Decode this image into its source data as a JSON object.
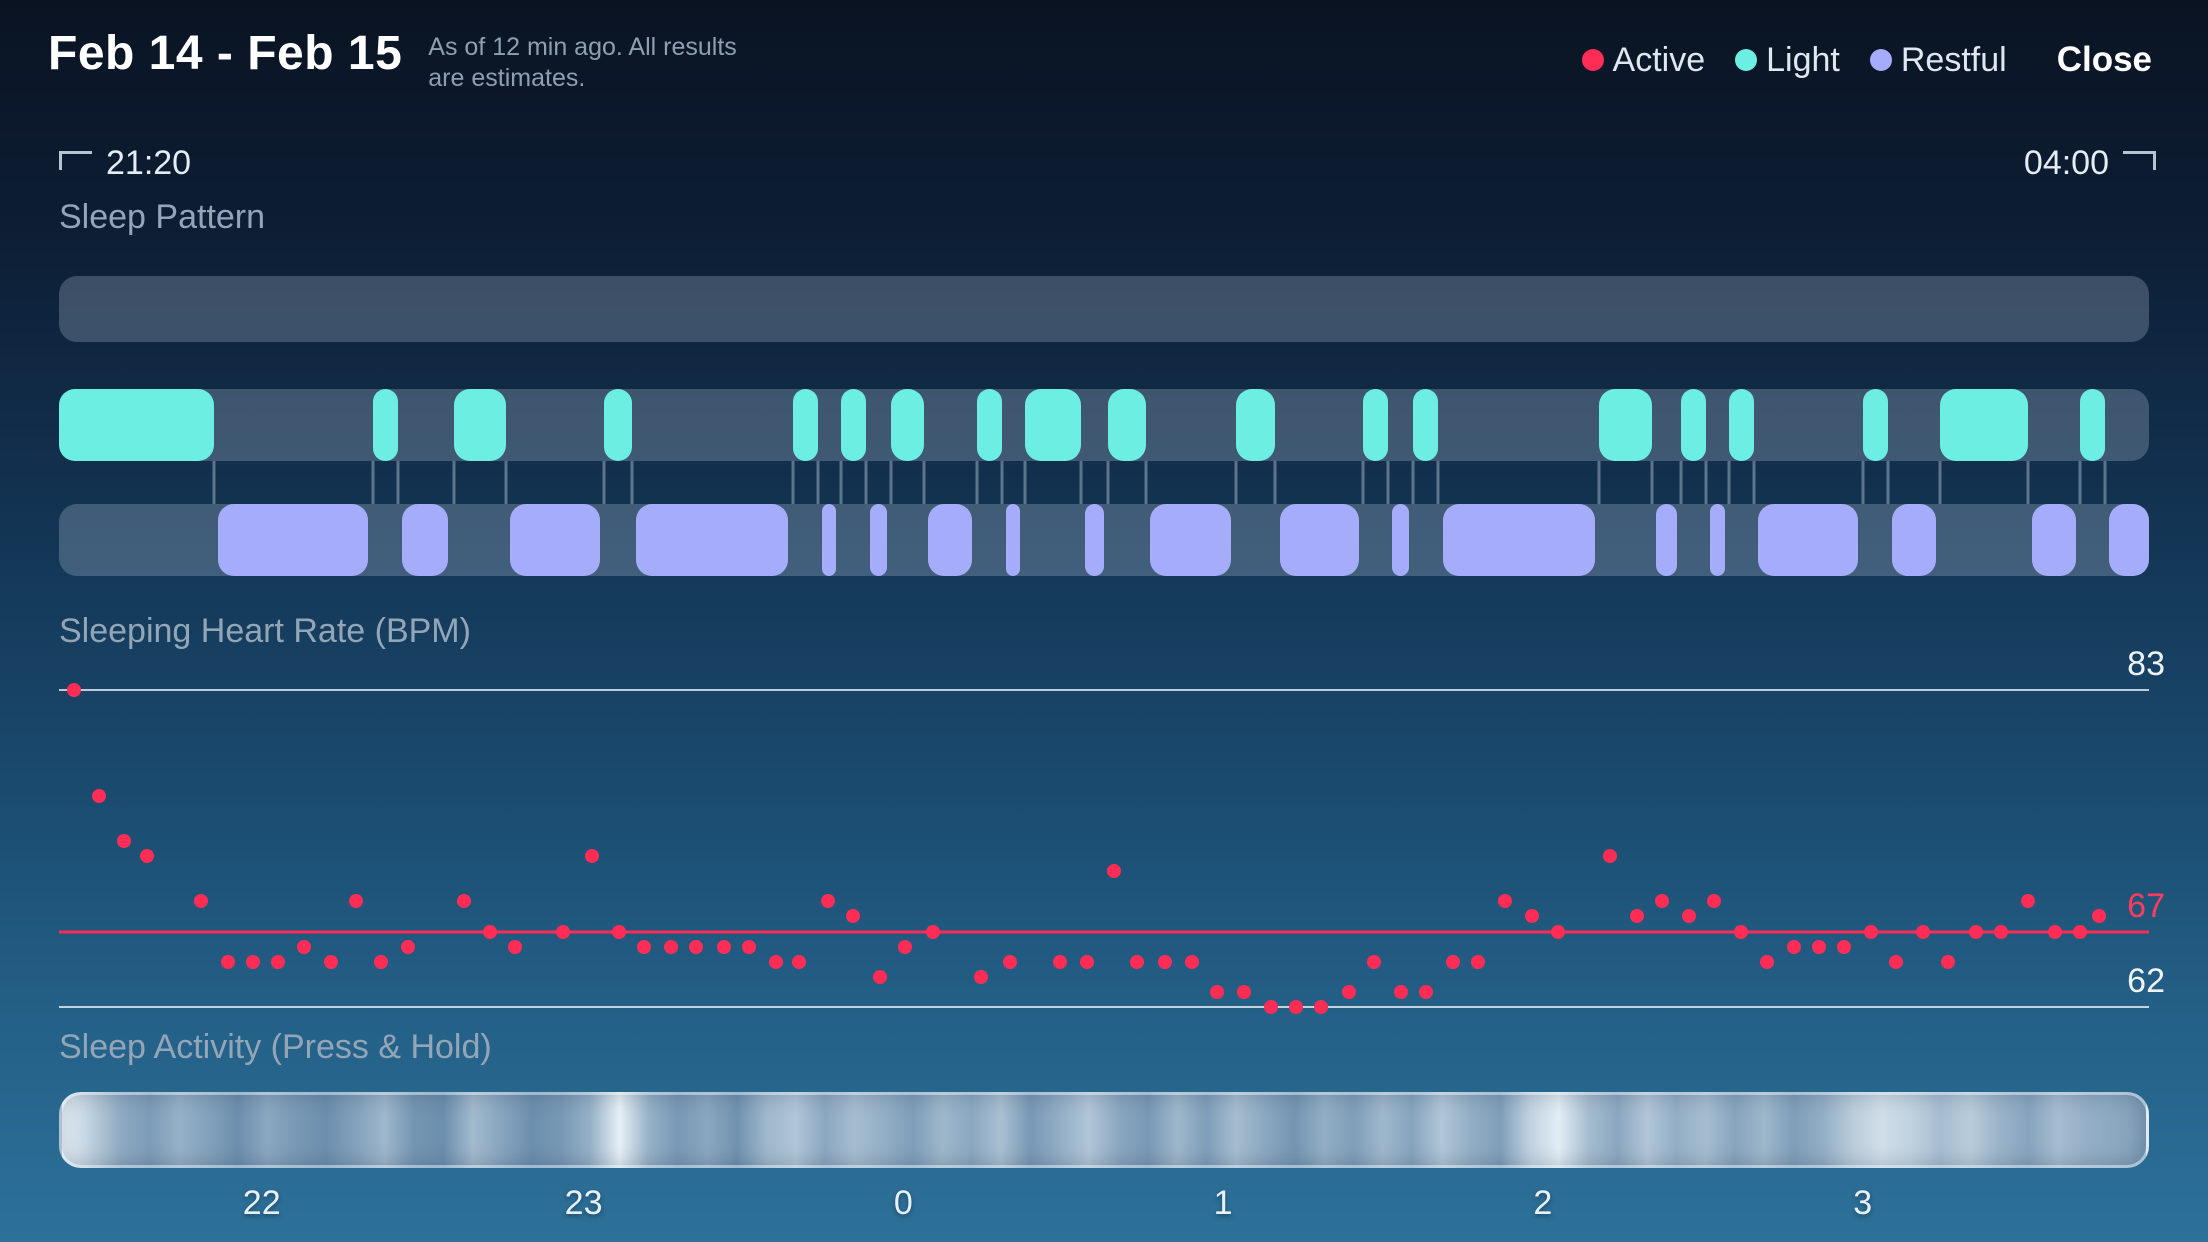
{
  "header": {
    "title": "Feb 14 - Feb 15",
    "subtitle_line1": "As of 12 min ago. All results",
    "subtitle_line2": "are estimates.",
    "close_label": "Close",
    "legend": [
      {
        "label": "Active",
        "color": "#ff2d55"
      },
      {
        "label": "Light",
        "color": "#6ceee3"
      },
      {
        "label": "Restful",
        "color": "#a5adfa"
      }
    ]
  },
  "timeline": {
    "start_label": "21:20",
    "end_label": "04:00"
  },
  "sections": {
    "sleep_pattern": "Sleep Pattern",
    "heart_rate": "Sleeping Heart Rate (BPM)",
    "activity": "Sleep Activity (Press & Hold)"
  },
  "chart_data": [
    {
      "type": "timeline-bands",
      "title": "Sleep Pattern",
      "x_domain": [
        "21:20",
        "04:00"
      ],
      "tracks": [
        {
          "name": "Active",
          "color": "#ff2d55",
          "segments": []
        },
        {
          "name": "Light",
          "color": "#6ceee3",
          "segments": [
            [
              0.0,
              0.074
            ],
            [
              0.15,
              0.162
            ],
            [
              0.189,
              0.214
            ],
            [
              0.261,
              0.274
            ],
            [
              0.351,
              0.363
            ],
            [
              0.374,
              0.386
            ],
            [
              0.398,
              0.414
            ],
            [
              0.439,
              0.451
            ],
            [
              0.462,
              0.489
            ],
            [
              0.502,
              0.52
            ],
            [
              0.563,
              0.582
            ],
            [
              0.624,
              0.636
            ],
            [
              0.648,
              0.66
            ],
            [
              0.737,
              0.762
            ],
            [
              0.776,
              0.788
            ],
            [
              0.799,
              0.811
            ],
            [
              0.863,
              0.875
            ],
            [
              0.9,
              0.942
            ],
            [
              0.967,
              0.979
            ]
          ]
        },
        {
          "name": "Restful",
          "color": "#a5adfa",
          "segments": [
            [
              0.076,
              0.148
            ],
            [
              0.164,
              0.186
            ],
            [
              0.216,
              0.259
            ],
            [
              0.276,
              0.349
            ],
            [
              0.365,
              0.372
            ],
            [
              0.388,
              0.396
            ],
            [
              0.416,
              0.437
            ],
            [
              0.453,
              0.46
            ],
            [
              0.491,
              0.5
            ],
            [
              0.522,
              0.561
            ],
            [
              0.584,
              0.622
            ],
            [
              0.638,
              0.646
            ],
            [
              0.662,
              0.735
            ],
            [
              0.764,
              0.774
            ],
            [
              0.79,
              0.797
            ],
            [
              0.813,
              0.861
            ],
            [
              0.877,
              0.898
            ],
            [
              0.944,
              0.965
            ],
            [
              0.981,
              1.0
            ]
          ]
        }
      ]
    },
    {
      "type": "scatter",
      "title": "Sleeping Heart Rate (BPM)",
      "ylabel": "BPM",
      "ylim": [
        62,
        83
      ],
      "x_domain": [
        "21:20",
        "04:00"
      ],
      "point_color": "#ff2d55",
      "reference_lines": [
        {
          "value": 83,
          "label": "83",
          "highlight": false
        },
        {
          "value": 67,
          "label": "67",
          "highlight": true
        },
        {
          "value": 62,
          "label": "62",
          "highlight": false
        }
      ],
      "points": [
        [
          0.007,
          83
        ],
        [
          0.019,
          76
        ],
        [
          0.031,
          73
        ],
        [
          0.042,
          72
        ],
        [
          0.068,
          69
        ],
        [
          0.081,
          65
        ],
        [
          0.093,
          65
        ],
        [
          0.105,
          65
        ],
        [
          0.117,
          66
        ],
        [
          0.13,
          65
        ],
        [
          0.142,
          69
        ],
        [
          0.154,
          65
        ],
        [
          0.167,
          66
        ],
        [
          0.194,
          69
        ],
        [
          0.206,
          67
        ],
        [
          0.218,
          66
        ],
        [
          0.241,
          67
        ],
        [
          0.255,
          72
        ],
        [
          0.268,
          67
        ],
        [
          0.28,
          66
        ],
        [
          0.293,
          66
        ],
        [
          0.305,
          66
        ],
        [
          0.318,
          66
        ],
        [
          0.33,
          66
        ],
        [
          0.343,
          65
        ],
        [
          0.354,
          65
        ],
        [
          0.368,
          69
        ],
        [
          0.38,
          68
        ],
        [
          0.393,
          64
        ],
        [
          0.405,
          66
        ],
        [
          0.418,
          67
        ],
        [
          0.441,
          64
        ],
        [
          0.455,
          65
        ],
        [
          0.479,
          65
        ],
        [
          0.492,
          65
        ],
        [
          0.505,
          71
        ],
        [
          0.516,
          65
        ],
        [
          0.529,
          65
        ],
        [
          0.542,
          65
        ],
        [
          0.554,
          63
        ],
        [
          0.567,
          63
        ],
        [
          0.58,
          62
        ],
        [
          0.592,
          62
        ],
        [
          0.604,
          62
        ],
        [
          0.617,
          63
        ],
        [
          0.629,
          65
        ],
        [
          0.642,
          63
        ],
        [
          0.654,
          63
        ],
        [
          0.667,
          65
        ],
        [
          0.679,
          65
        ],
        [
          0.692,
          69
        ],
        [
          0.705,
          68
        ],
        [
          0.717,
          67
        ],
        [
          0.742,
          72
        ],
        [
          0.755,
          68
        ],
        [
          0.767,
          69
        ],
        [
          0.78,
          68
        ],
        [
          0.792,
          69
        ],
        [
          0.805,
          67
        ],
        [
          0.817,
          65
        ],
        [
          0.83,
          66
        ],
        [
          0.842,
          66
        ],
        [
          0.854,
          66
        ],
        [
          0.867,
          67
        ],
        [
          0.879,
          65
        ],
        [
          0.892,
          67
        ],
        [
          0.904,
          65
        ],
        [
          0.917,
          67
        ],
        [
          0.929,
          67
        ],
        [
          0.942,
          69
        ],
        [
          0.955,
          67
        ],
        [
          0.967,
          67
        ],
        [
          0.976,
          68
        ]
      ]
    },
    {
      "type": "heatmap",
      "title": "Sleep Activity (Press & Hold)",
      "low_color": "#33628c",
      "high_color": "#f2f9fd",
      "values": [
        0.97,
        0.72,
        0.48,
        0.38,
        0.52,
        0.42,
        0.3,
        0.46,
        0.36,
        0.3,
        0.42,
        0.56,
        0.34,
        0.3,
        0.58,
        0.44,
        0.3,
        0.36,
        0.52,
        0.94,
        0.52,
        0.36,
        0.46,
        0.32,
        0.56,
        0.66,
        0.46,
        0.6,
        0.5,
        0.4,
        0.56,
        0.46,
        0.62,
        0.36,
        0.5,
        0.66,
        0.46,
        0.36,
        0.56,
        0.4,
        0.6,
        0.46,
        0.34,
        0.5,
        0.4,
        0.56,
        0.44,
        0.66,
        0.5,
        0.4,
        0.74,
        0.92,
        0.6,
        0.46,
        0.66,
        0.5,
        0.6,
        0.44,
        0.56,
        0.4,
        0.5,
        0.7,
        0.82,
        0.74,
        0.6,
        0.7,
        0.54,
        0.44,
        0.6,
        0.5,
        0.46,
        0.4
      ],
      "x_ticks": {
        "labels": [
          "22",
          "23",
          "0",
          "1",
          "2",
          "3"
        ],
        "fractions": [
          0.097,
          0.251,
          0.404,
          0.557,
          0.71,
          0.863
        ]
      }
    }
  ]
}
